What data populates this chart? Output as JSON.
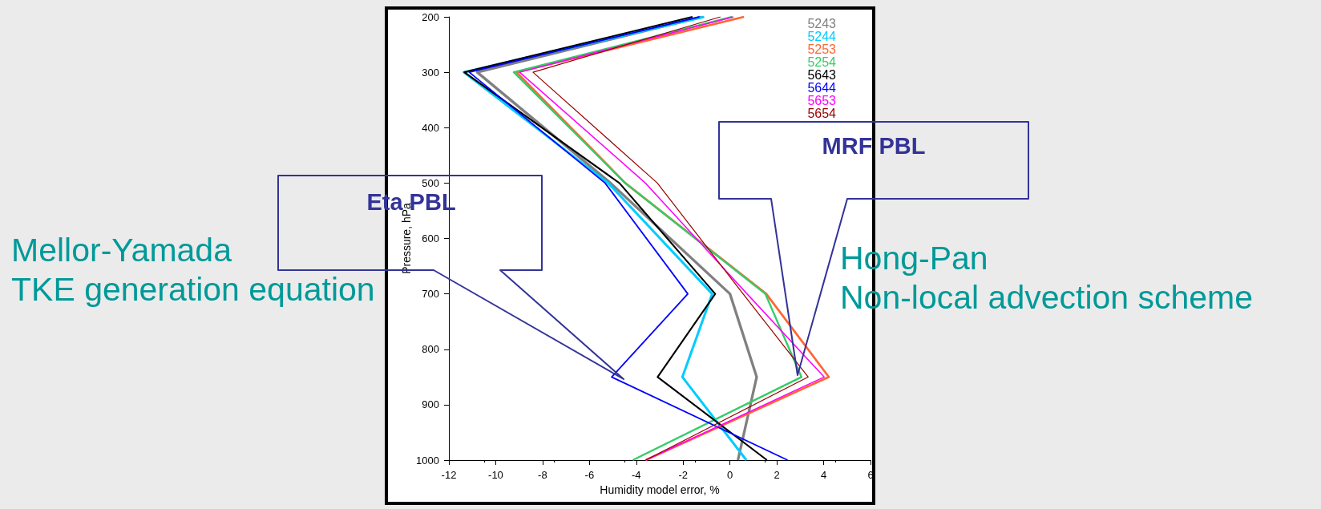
{
  "chart_data": {
    "type": "line",
    "xlabel": "Humidity model error, %",
    "ylabel": "Pressure, hPa",
    "xlim": [
      -12,
      6
    ],
    "xticks": [
      -12,
      -10,
      -8,
      -6,
      -4,
      -2,
      0,
      2,
      4,
      6
    ],
    "ylim": [
      1000,
      200
    ],
    "yticks": [
      200,
      300,
      400,
      500,
      600,
      700,
      800,
      900,
      1000
    ],
    "grid": false,
    "legend": "top right",
    "marker": "none",
    "line_style": "solid",
    "series": [
      {
        "name": "5243",
        "color": "#808080",
        "x": [
          -1.2,
          -10.79,
          -5.1,
          0.0,
          1.14,
          0.34
        ],
        "values": [
          200,
          300,
          500,
          700,
          850,
          1000
        ]
      },
      {
        "name": "5244",
        "color": "#00ccff",
        "x": [
          -1.1,
          -11.36,
          -5.2,
          -0.76,
          -2.03,
          0.7
        ],
        "values": [
          200,
          300,
          500,
          700,
          850,
          1000
        ]
      },
      {
        "name": "5253",
        "color": "#ff6633",
        "x": [
          0.6,
          -9.11,
          -4.47,
          1.55,
          4.22,
          -3.6
        ],
        "values": [
          200,
          300,
          500,
          700,
          850,
          1000
        ]
      },
      {
        "name": "5254",
        "color": "#33cc66",
        "x": [
          0.1,
          -9.23,
          -4.47,
          1.51,
          3.05,
          -4.15
        ],
        "values": [
          200,
          300,
          500,
          700,
          850,
          1000
        ]
      },
      {
        "name": "5643",
        "color": "#000000",
        "x": [
          -1.6,
          -11.34,
          -4.72,
          -0.63,
          -3.09,
          1.58
        ],
        "values": [
          200,
          300,
          500,
          700,
          850,
          1000
        ]
      },
      {
        "name": "5644",
        "color": "#0000ff",
        "x": [
          -1.3,
          -11.13,
          -5.33,
          -1.8,
          -5.05,
          2.46
        ],
        "values": [
          200,
          300,
          500,
          700,
          850,
          1000
        ]
      },
      {
        "name": "5653",
        "color": "#ff00ff",
        "x": [
          0.15,
          -8.98,
          -3.61,
          0.73,
          4.02,
          -3.6
        ],
        "values": [
          200,
          300,
          500,
          700,
          850,
          1000
        ]
      },
      {
        "name": "5654",
        "color": "#990000",
        "x": [
          -0.4,
          -8.41,
          -3.1,
          0.56,
          3.34,
          -3.6
        ],
        "values": [
          200,
          300,
          500,
          700,
          850,
          1000
        ]
      }
    ],
    "annotations": [
      "Eta PBL",
      "MRF PBL",
      "Mellor-Yamada\nTKE generation equation",
      "Hong-Pan\nNon-local advection scheme"
    ]
  }
}
